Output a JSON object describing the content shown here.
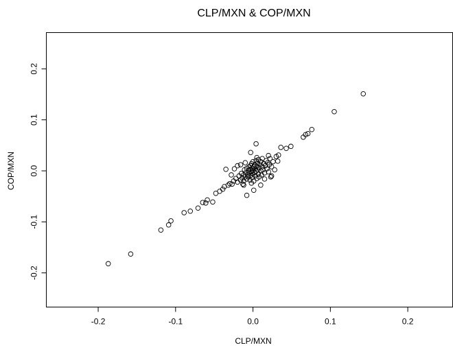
{
  "chart_data": {
    "type": "scatter",
    "title": "CLP/MXN & COP/MXN",
    "x_label": "CLP/MXN",
    "y_label": "COP/MXN",
    "xlim": [
      -0.267,
      0.258
    ],
    "ylim": [
      -0.267,
      0.271
    ],
    "xticks": [
      -0.2,
      -0.1,
      {
        "value": 0,
        "label": "0.0"
      },
      0.1,
      0.2
    ],
    "yticks": [
      -0.2,
      -0.1,
      {
        "value": 0,
        "label": "0.0"
      },
      0.1,
      0.2
    ],
    "color": "#000000",
    "x": [
      0.1425,
      0.105,
      0.076,
      0.071,
      0.068,
      0.065,
      0.049,
      0.043,
      0.036,
      0.004,
      -0.003,
      -0.035,
      -0.187,
      -0.158,
      -0.119,
      -0.109,
      -0.106,
      -0.089,
      -0.081,
      -0.071,
      -0.065,
      -0.061,
      -0.059,
      -0.052,
      -0.048,
      -0.043,
      -0.037,
      -0.039,
      -0.032,
      -0.027,
      -0.012,
      0.001,
      -0.008,
      0.01,
      0.023,
      0.032,
      0.033,
      -0.025,
      -0.022,
      -0.02,
      -0.018,
      -0.016,
      -0.015,
      -0.014,
      -0.012,
      -0.012,
      -0.011,
      -0.01,
      -0.009,
      -0.008,
      -0.008,
      -0.007,
      -0.006,
      -0.006,
      -0.005,
      -0.005,
      -0.004,
      -0.004,
      -0.003,
      -0.003,
      -0.002,
      -0.002,
      -0.001,
      -0.001,
      0.0,
      0.0,
      0.0,
      0.001,
      0.001,
      0.002,
      0.002,
      0.003,
      0.003,
      0.004,
      0.004,
      0.005,
      0.005,
      0.006,
      0.006,
      0.007,
      0.007,
      0.008,
      0.008,
      0.009,
      0.01,
      0.01,
      0.011,
      0.012,
      0.012,
      0.013,
      0.014,
      0.015,
      0.016,
      0.017,
      0.018,
      0.019,
      0.02,
      0.021,
      0.022,
      0.024,
      0.026,
      0.028,
      0.03,
      -0.028,
      -0.03,
      -0.024,
      -0.02,
      0.015,
      0.024,
      -0.016,
      -0.01,
      0.02,
      -0.013,
      0.005,
      -0.002
    ],
    "values": [
      0.151,
      0.116,
      0.081,
      0.073,
      0.071,
      0.066,
      0.048,
      0.044,
      0.046,
      0.053,
      0.036,
      0.003,
      -0.182,
      -0.163,
      -0.116,
      -0.106,
      -0.098,
      -0.082,
      -0.079,
      -0.073,
      -0.062,
      -0.063,
      -0.057,
      -0.061,
      -0.044,
      -0.04,
      -0.031,
      -0.036,
      -0.028,
      -0.026,
      -0.028,
      -0.038,
      -0.048,
      -0.028,
      -0.012,
      0.019,
      0.031,
      -0.02,
      -0.015,
      -0.022,
      -0.01,
      -0.018,
      -0.005,
      -0.014,
      -0.02,
      -0.008,
      0.002,
      -0.012,
      -0.003,
      -0.016,
      0.005,
      -0.008,
      0.0,
      -0.012,
      0.008,
      -0.004,
      -0.018,
      0.003,
      -0.009,
      0.01,
      -0.002,
      0.014,
      -0.013,
      0.005,
      -0.006,
      0.001,
      0.018,
      -0.02,
      0.008,
      -0.003,
      0.012,
      -0.01,
      0.004,
      0.02,
      -0.001,
      0.009,
      -0.015,
      0.002,
      0.015,
      -0.006,
      0.022,
      0.006,
      -0.012,
      0.012,
      0.0,
      0.018,
      -0.008,
      0.008,
      0.024,
      0.002,
      0.014,
      -0.004,
      0.01,
      0.02,
      0.004,
      0.016,
      -0.002,
      0.012,
      0.024,
      0.008,
      0.018,
      0.002,
      0.028,
      -0.008,
      -0.025,
      0.004,
      0.01,
      -0.016,
      -0.01,
      0.012,
      0.016,
      0.03,
      -0.026,
      0.026,
      -0.024
    ]
  }
}
